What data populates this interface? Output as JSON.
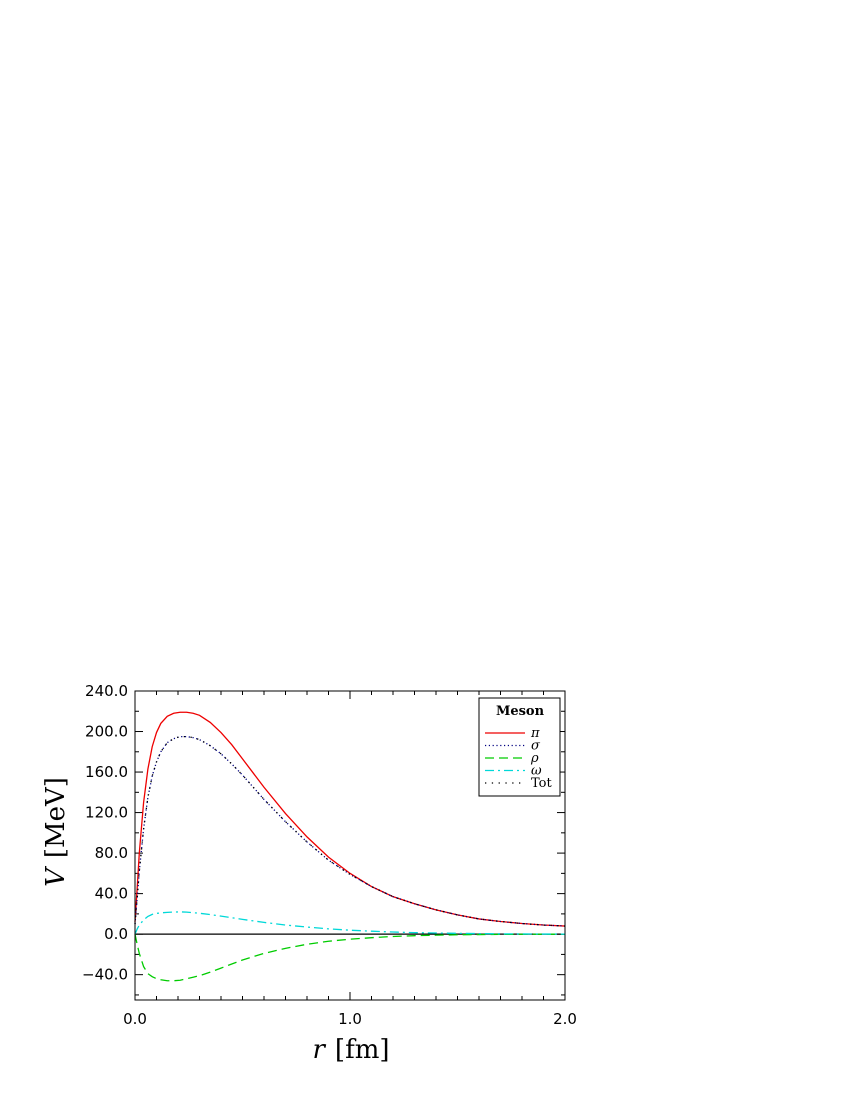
{
  "chart_data": {
    "type": "line",
    "xlabel": {
      "var": "r",
      "unit": "[fm]"
    },
    "ylabel": {
      "var": "V",
      "unit": "[MeV]"
    },
    "xlim": [
      0,
      2
    ],
    "ylim": [
      -65,
      240
    ],
    "xticks": [
      0,
      1,
      2
    ],
    "xtick_labels": [
      "0.0",
      "1.0",
      "2.0"
    ],
    "yticks": [
      -40,
      0,
      40,
      80,
      120,
      160,
      200,
      240
    ],
    "ytick_labels": [
      "−40.0",
      "0.0",
      "40.0",
      "80.0",
      "120.0",
      "160.0",
      "200.0",
      "240.0"
    ],
    "grid": false,
    "zero_line": true,
    "legend": {
      "title": "Meson",
      "position": "top-right"
    },
    "x": [
      0,
      0.01,
      0.02,
      0.04,
      0.06,
      0.08,
      0.1,
      0.12,
      0.15,
      0.18,
      0.21,
      0.24,
      0.27,
      0.3,
      0.35,
      0.4,
      0.45,
      0.5,
      0.6,
      0.7,
      0.8,
      0.9,
      1.0,
      1.1,
      1.2,
      1.3,
      1.4,
      1.5,
      1.6,
      1.7,
      1.8,
      1.9,
      2.0
    ],
    "series": [
      {
        "name": "π",
        "color": "#ee0000",
        "dash": "solid",
        "values": [
          12,
          45,
          80,
          130,
          163,
          185,
          199,
          208,
          215,
          218,
          219,
          219,
          218,
          216,
          209,
          199,
          187,
          173,
          145,
          119,
          96,
          76,
          60,
          47,
          37,
          30,
          24,
          19,
          15,
          12.5,
          10.5,
          9,
          8
        ]
      },
      {
        "name": "σ",
        "color": "#000080",
        "dash": "dotted",
        "values": [
          10,
          35,
          62,
          104,
          135,
          156,
          170,
          180,
          189,
          193,
          195,
          195,
          194,
          192,
          186,
          178,
          168,
          157,
          133,
          111,
          91,
          73,
          59,
          47,
          37,
          30,
          24,
          19,
          15,
          12.5,
          10.5,
          9,
          8
        ]
      },
      {
        "name": "ρ",
        "color": "#00cc00",
        "dash": "dashed",
        "values": [
          0,
          -10,
          -19,
          -32,
          -39,
          -42,
          -44,
          -45,
          -46,
          -46,
          -45.5,
          -44,
          -42.5,
          -41,
          -37.5,
          -33.5,
          -29.5,
          -25.5,
          -19,
          -14,
          -10,
          -7,
          -5,
          -3.5,
          -2.3,
          -1.5,
          -1,
          -0.6,
          -0.4,
          -0.2,
          -0.1,
          -0.05,
          0
        ]
      },
      {
        "name": "ω",
        "color": "#00d8d8",
        "dash": "dashdot",
        "values": [
          0,
          5,
          9,
          14,
          17.5,
          19.5,
          20.5,
          21,
          21.5,
          21.8,
          22,
          21.7,
          21.2,
          20.6,
          19.3,
          17.8,
          16.2,
          14.6,
          11.6,
          9,
          7,
          5.2,
          3.9,
          2.9,
          2.1,
          1.5,
          1.1,
          0.8,
          0.5,
          0.3,
          0.2,
          0.1,
          0.05
        ]
      },
      {
        "name": "Tot",
        "color": "#000000",
        "dash": "sparse-dotted",
        "values": [
          10,
          35,
          62,
          104,
          135,
          156,
          170,
          180,
          189,
          193,
          195,
          195,
          194,
          192,
          186,
          178,
          168,
          157,
          133,
          111,
          91,
          73,
          59,
          47,
          37,
          30,
          24,
          19,
          15,
          12.5,
          10.5,
          9,
          8
        ]
      }
    ]
  }
}
